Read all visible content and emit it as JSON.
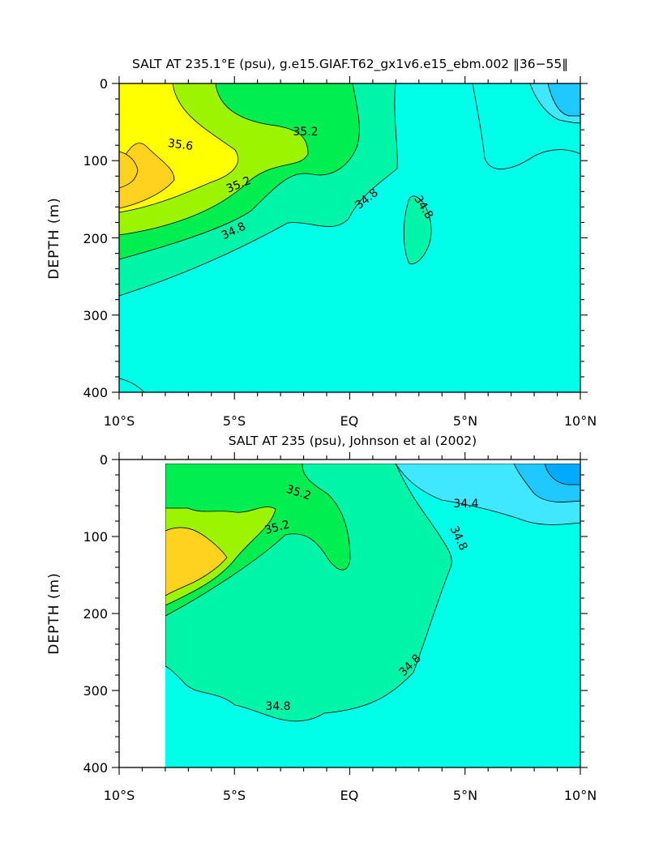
{
  "chart_data": [
    {
      "type": "contour",
      "title": "SALT AT 235.1°E (psu), g.e15.GIAF.T62_gx1v6.e15_ebm.002 ‖36−55‖",
      "xlabel": "",
      "ylabel": "DEPTH (m)",
      "xlim": [
        -10,
        10
      ],
      "ylim": [
        400,
        0
      ],
      "x_ticks": [
        -10,
        -5,
        0,
        5,
        10
      ],
      "x_tick_labels": [
        "10°S",
        "5°S",
        "EQ",
        "5°N",
        "10°N"
      ],
      "y_ticks": [
        0,
        100,
        200,
        300,
        400
      ],
      "y_tick_labels": [
        "0",
        "100",
        "200",
        "300",
        "400"
      ],
      "contour_interval": 0.2,
      "levels": [
        34.0,
        34.2,
        34.4,
        34.6,
        34.8,
        35.0,
        35.2,
        35.4,
        35.6,
        35.8
      ],
      "fill_colors": {
        "34.0": "#00aaff",
        "34.2": "#1fc8ff",
        "34.4": "#40e8ff",
        "34.6": "#00ffe8",
        "34.8": "#00f5a8",
        "35.0": "#00ee50",
        "35.2": "#9df400",
        "35.4": "#ffff00",
        "35.6": "#ffd21f"
      },
      "contour_labels": [
        "35.2",
        "35.6",
        "35.2",
        "34.8",
        "34.8",
        "34.8"
      ],
      "regions": [
        {
          "min": 35.6,
          "max": 35.8,
          "x": [
            -10,
            -9.2,
            -8.6,
            -8.9,
            -9.6,
            -10
          ],
          "y": [
            88,
            98,
            110,
            122,
            130,
            132
          ]
        },
        {
          "min": 35.4,
          "max": 35.6,
          "x": [
            -10,
            -9.2,
            -8.4,
            -6.8,
            -7.2,
            -8.5,
            -10
          ],
          "y": [
            68,
            48,
            55,
            102,
            128,
            140,
            148
          ]
        },
        {
          "min": 35.2,
          "max": 35.4,
          "x": [
            -10,
            -10,
            -8.2,
            -7.6,
            -6.8,
            -5.5,
            -5.9,
            -7.8,
            -10
          ],
          "y": [
            50,
            0,
            0,
            30,
            55,
            92,
            112,
            145,
            166
          ]
        },
        {
          "min": 35.0,
          "max": 35.2,
          "x": [
            -10,
            -10,
            -7.2,
            -6.9,
            -5.5,
            -4.7,
            -3.2,
            -2.6,
            -2.8,
            -3.6,
            -6.0,
            -8.5,
            -10
          ],
          "y": [
            170,
            0,
            0,
            30,
            45,
            122,
            142,
            133,
            90,
            65,
            102,
            150,
            185
          ]
        },
        {
          "min": 34.8,
          "max": 35.0,
          "x": [
            -10,
            -10,
            0.3,
            0.5,
            1.8,
            0.7,
            -0.5,
            -1.8,
            -3.2,
            -5.0,
            -8.6,
            -10
          ],
          "y": [
            230,
            0,
            0,
            80,
            108,
            135,
            178,
            158,
            170,
            195,
            212,
            230
          ]
        },
        {
          "min": 34.8,
          "max": 35.0,
          "x": [
            2.0,
            2.5,
            3.3,
            3.4,
            2.6,
            2.1
          ],
          "y": [
            180,
            160,
            200,
            205,
            240,
            225
          ]
        },
        {
          "min": 34.6,
          "max": 34.8,
          "x": [
            1.9,
            1.8,
            3.2,
            4.2,
            8.2,
            10
          ],
          "y": [
            0,
            110,
            150,
            180,
            175,
            155
          ]
        },
        {
          "min": 34.4,
          "max": 34.6,
          "x": [
            5.9,
            6.2,
            7.5,
            10,
            10
          ],
          "y": [
            0,
            80,
            115,
            95,
            30
          ]
        },
        {
          "min": 34.2,
          "max": 34.4,
          "x": [
            8.6,
            9.3,
            10,
            10
          ],
          "y": [
            0,
            40,
            40,
            0
          ]
        }
      ]
    },
    {
      "type": "contour",
      "title": "SALT AT 235 (psu), Johnson et al (2002)",
      "xlabel": "",
      "ylabel": "DEPTH (m)",
      "xlim": [
        -10,
        10
      ],
      "ylim": [
        400,
        0
      ],
      "x_ticks": [
        -10,
        -5,
        0,
        5,
        10
      ],
      "x_tick_labels": [
        "10°S",
        "5°S",
        "EQ",
        "5°N",
        "10°N"
      ],
      "y_ticks": [
        0,
        100,
        200,
        300,
        400
      ],
      "y_tick_labels": [
        "0",
        "100",
        "200",
        "300",
        "400"
      ],
      "data_domain": {
        "x": [
          -8,
          10
        ],
        "y": [
          5,
          400
        ]
      },
      "contour_interval": 0.2,
      "levels": [
        34.0,
        34.2,
        34.4,
        34.6,
        34.8,
        35.0,
        35.2,
        35.4,
        35.6
      ],
      "fill_colors": {
        "34.0": "#00aaff",
        "34.2": "#1fc8ff",
        "34.4": "#40e8ff",
        "34.6": "#00ffe8",
        "34.8": "#00f5a8",
        "35.0": "#00ee50",
        "35.2": "#9df400",
        "35.4": "#ffd21f"
      },
      "contour_labels": [
        "35.2",
        "35.2",
        "34.4",
        "34.8",
        "34.8",
        "34.8"
      ],
      "regions": [
        {
          "min": 35.4,
          "max": 35.6,
          "x": [
            -8,
            -7.6,
            -6.5,
            -5.8,
            -5.2,
            -6.3,
            -7.2,
            -8
          ],
          "y": [
            86,
            80,
            85,
            100,
            113,
            125,
            138,
            142
          ]
        },
        {
          "min": 35.2,
          "max": 35.4,
          "x": [
            -8,
            -8,
            -7.0,
            -5.8,
            -4.5,
            -3.1,
            -3.4,
            -4.6,
            -5.9,
            -7.0,
            -8
          ],
          "y": [
            62,
            57,
            68,
            62,
            72,
            62,
            80,
            100,
            132,
            150,
            170
          ]
        },
        {
          "min": 35.0,
          "max": 35.2,
          "x": [
            -8,
            -8,
            -2.1,
            -2.3,
            -1.4,
            -0.2,
            -0.1,
            -1.0,
            -1.9,
            -2.8,
            -5.0,
            -7.0,
            -8
          ],
          "y": [
            210,
            5,
            5,
            27,
            32,
            65,
            118,
            138,
            118,
            100,
            130,
            180,
            195
          ]
        },
        {
          "min": 34.8,
          "max": 35.0,
          "x": [
            -8,
            -8,
            1.8,
            2.6,
            3.6,
            4.4,
            4.4,
            3.0,
            1.5,
            0.2,
            -2.6,
            -4.4,
            -5.8,
            -8
          ],
          "y": [
            370,
            5,
            5,
            58,
            75,
            96,
            120,
            222,
            283,
            296,
            338,
            355,
            330,
            315
          ]
        },
        {
          "min": 34.6,
          "max": 34.8,
          "x": [
            2.0,
            2.1,
            4.0,
            7.0,
            10,
            10
          ],
          "y": [
            5,
            25,
            60,
            92,
            90,
            5
          ]
        },
        {
          "min": 34.4,
          "max": 34.6,
          "x": [
            2.2,
            3.8,
            6.0,
            8.4,
            10,
            10
          ],
          "y": [
            5,
            38,
            64,
            78,
            70,
            5
          ]
        },
        {
          "min": 34.2,
          "max": 34.4,
          "x": [
            7.2,
            7.8,
            8.6,
            10,
            10
          ],
          "y": [
            5,
            40,
            62,
            55,
            5
          ]
        },
        {
          "min": 34.0,
          "max": 34.2,
          "x": [
            8.8,
            9.1,
            9.7,
            10,
            10
          ],
          "y": [
            5,
            25,
            32,
            30,
            5
          ]
        }
      ]
    }
  ]
}
